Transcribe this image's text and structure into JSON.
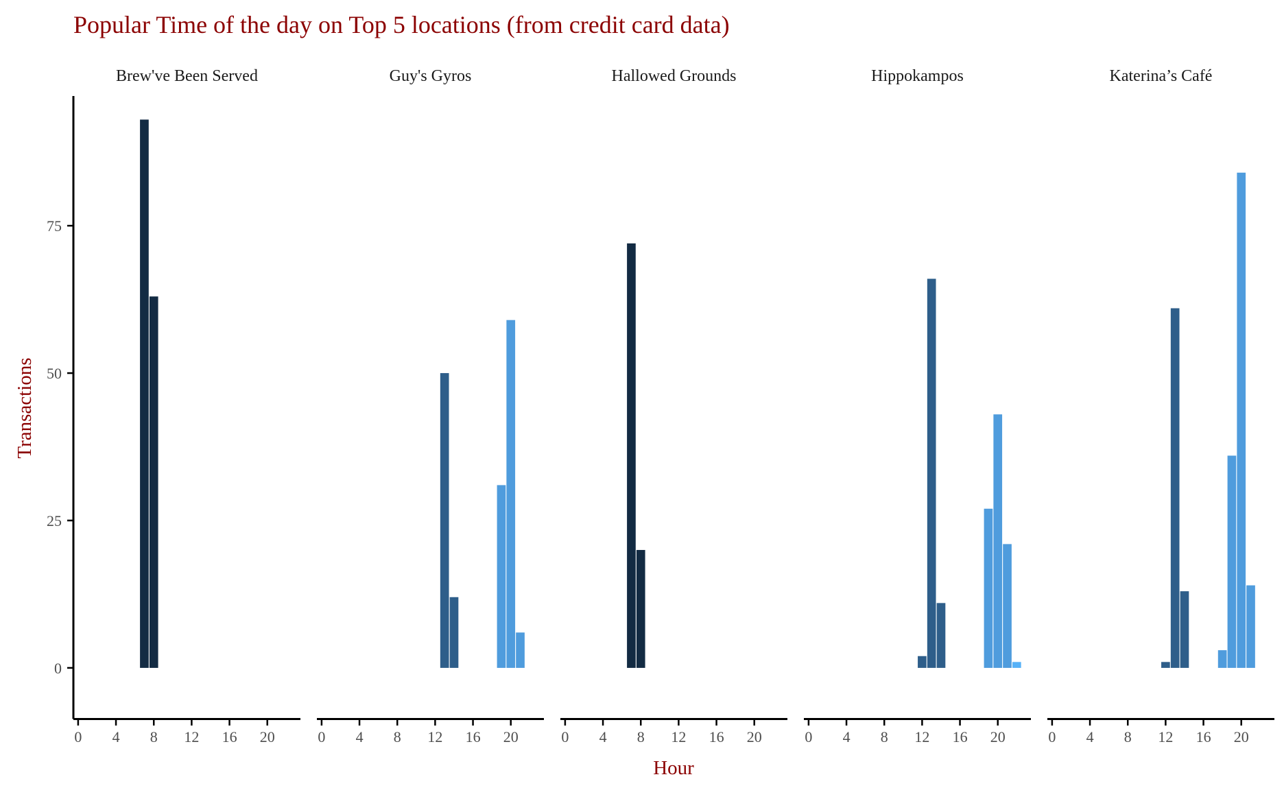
{
  "chart_data": {
    "type": "bar",
    "title": "Popular Time of the day on Top 5 locations (from credit card data)",
    "xlabel": "Hour",
    "ylabel": "Transactions",
    "xlim": [
      -0.5,
      23.5
    ],
    "ylim": [
      -8.5,
      97
    ],
    "x_ticks": [
      0,
      4,
      8,
      12,
      16,
      20
    ],
    "y_ticks": [
      0,
      25,
      50,
      75
    ],
    "grid": false,
    "legend": "none",
    "palette": {
      "morning": "#132B43",
      "midday": "#2E5E8A",
      "evening": "#4F9CDD",
      "late": "#56B1F7",
      "axis": "#000000"
    },
    "panels": [
      {
        "name": "Brew've Been Served",
        "bars": [
          {
            "hour": 7,
            "value": 93
          },
          {
            "hour": 8,
            "value": 63
          }
        ]
      },
      {
        "name": "Guy's Gyros",
        "bars": [
          {
            "hour": 13,
            "value": 50
          },
          {
            "hour": 14,
            "value": 12
          },
          {
            "hour": 19,
            "value": 31
          },
          {
            "hour": 20,
            "value": 59
          },
          {
            "hour": 21,
            "value": 6
          }
        ]
      },
      {
        "name": "Hallowed Grounds",
        "bars": [
          {
            "hour": 7,
            "value": 72
          },
          {
            "hour": 8,
            "value": 20
          }
        ]
      },
      {
        "name": "Hippokampos",
        "bars": [
          {
            "hour": 12,
            "value": 2
          },
          {
            "hour": 13,
            "value": 66
          },
          {
            "hour": 14,
            "value": 11
          },
          {
            "hour": 19,
            "value": 27
          },
          {
            "hour": 20,
            "value": 43
          },
          {
            "hour": 21,
            "value": 21
          },
          {
            "hour": 22,
            "value": 1
          }
        ]
      },
      {
        "name": "Katerina’s Café",
        "bars": [
          {
            "hour": 12,
            "value": 1
          },
          {
            "hour": 13,
            "value": 61
          },
          {
            "hour": 14,
            "value": 13
          },
          {
            "hour": 18,
            "value": 3
          },
          {
            "hour": 19,
            "value": 36
          },
          {
            "hour": 20,
            "value": 84
          },
          {
            "hour": 21,
            "value": 14
          }
        ]
      }
    ]
  }
}
